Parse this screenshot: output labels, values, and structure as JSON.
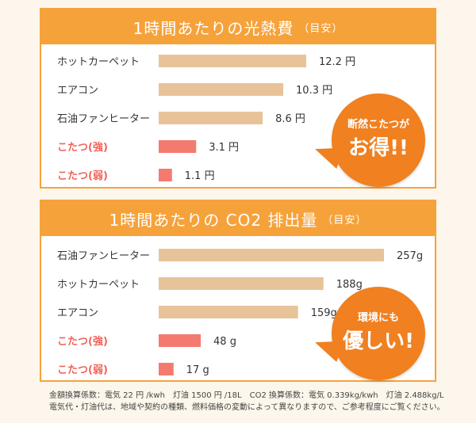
{
  "chart_data": [
    {
      "type": "bar",
      "title": "1時間あたりの光熱費",
      "subtitle": "（目安）",
      "unit_suffix": " 円",
      "categories": [
        "ホットカーペット",
        "エアコン",
        "石油ファンヒーター",
        "こたつ(強)",
        "こたつ(弱)"
      ],
      "values": [
        12.2,
        10.3,
        8.6,
        3.1,
        1.1
      ],
      "value_labels": [
        "12.2 円",
        "10.3 円",
        "8.6 円",
        "3.1 円",
        "1.1 円"
      ],
      "highlight": [
        false,
        false,
        false,
        true,
        true
      ],
      "orientation": "horizontal",
      "grid": false
    },
    {
      "type": "bar",
      "title": "1時間あたりの CO2 排出量",
      "subtitle": "（目安）",
      "categories": [
        "石油ファンヒーター",
        "ホットカーペット",
        "エアコン",
        "こたつ(強)",
        "こたつ(弱)"
      ],
      "values": [
        257,
        188,
        159,
        48,
        17
      ],
      "value_labels": [
        "257g",
        "188g",
        "159g",
        "48 g",
        "17 g"
      ],
      "highlight": [
        false,
        false,
        false,
        true,
        true
      ],
      "orientation": "horizontal",
      "grid": false
    }
  ],
  "bubbles": [
    {
      "line1": "断然こたつが",
      "line2": "お得!!"
    },
    {
      "line1": "環境にも",
      "line2": "優しい!"
    }
  ],
  "footnote": {
    "line1": "金額換算係数：電気 22 円 /kwh　灯油 1500 円 /18L　CO2 換算係数：電気 0.339kg/kwh　灯油 2.488kg/L",
    "line2": "電気代・灯油代は、地域や契約の種類、燃料価格の変動によって異なりますので、ご参考程度にご覧ください。"
  },
  "colors": {
    "header": "#f6a23a",
    "bar_normal": "#e8c39a",
    "bar_highlight": "#f47a70",
    "label_highlight": "#f0645a",
    "bubble": "#f08020"
  }
}
